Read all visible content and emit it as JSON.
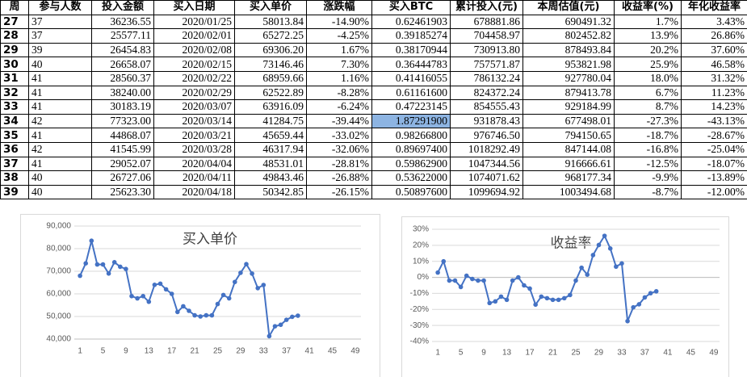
{
  "table": {
    "header": [
      "周",
      "参与人数",
      "投入金额",
      "买入日期",
      "买入单价",
      "涨跌幅",
      "买入BTC",
      "累计投入(元)",
      "本周估值(元)",
      "收益率(%)",
      "年化收益率"
    ],
    "rows": [
      [
        "27",
        "37",
        "36236.55",
        "2020/01/25",
        "58013.84",
        "-14.90%",
        "0.62461903",
        "678881.86",
        "690491.32",
        "1.7%",
        "3.43%"
      ],
      [
        "28",
        "37",
        "25577.11",
        "2020/02/01",
        "65272.25",
        "-4.25%",
        "0.39185274",
        "704458.97",
        "802452.82",
        "13.9%",
        "26.86%"
      ],
      [
        "29",
        "39",
        "26454.83",
        "2020/02/08",
        "69306.20",
        "1.67%",
        "0.38170944",
        "730913.80",
        "878493.84",
        "20.2%",
        "37.60%"
      ],
      [
        "30",
        "40",
        "26658.07",
        "2020/02/15",
        "73146.46",
        "7.30%",
        "0.36444783",
        "757571.87",
        "953821.98",
        "25.9%",
        "46.58%"
      ],
      [
        "31",
        "41",
        "28560.37",
        "2020/02/22",
        "68959.66",
        "1.16%",
        "0.41416055",
        "786132.24",
        "927780.04",
        "18.0%",
        "31.32%"
      ],
      [
        "32",
        "41",
        "38240.00",
        "2020/02/29",
        "62522.89",
        "-8.28%",
        "0.61161600",
        "824372.24",
        "879413.78",
        "6.7%",
        "11.23%"
      ],
      [
        "33",
        "41",
        "30183.19",
        "2020/03/07",
        "63916.09",
        "-6.24%",
        "0.47223145",
        "854555.43",
        "929184.99",
        "8.7%",
        "14.23%"
      ],
      [
        "34",
        "42",
        "77323.00",
        "2020/03/14",
        "41284.75",
        "-39.44%",
        "1.87291900",
        "931878.43",
        "677498.01",
        "-27.3%",
        "-43.13%"
      ],
      [
        "35",
        "41",
        "44868.07",
        "2020/03/21",
        "45659.44",
        "-33.02%",
        "0.98266800",
        "976746.50",
        "794150.65",
        "-18.7%",
        "-28.67%"
      ],
      [
        "36",
        "42",
        "41545.99",
        "2020/03/28",
        "46317.94",
        "-32.06%",
        "0.89697400",
        "1018292.49",
        "847144.08",
        "-16.8%",
        "-25.04%"
      ],
      [
        "37",
        "41",
        "29052.07",
        "2020/04/04",
        "48531.01",
        "-28.81%",
        "0.59862900",
        "1047344.56",
        "916666.61",
        "-12.5%",
        "-18.07%"
      ],
      [
        "38",
        "40",
        "26727.06",
        "2020/04/11",
        "49843.46",
        "-26.88%",
        "0.53622000",
        "1074071.62",
        "968177.34",
        "-9.9%",
        "-13.89%"
      ],
      [
        "39",
        "40",
        "25623.30",
        "2020/04/18",
        "50342.85",
        "-26.15%",
        "0.50897600",
        "1099694.92",
        "1003494.68",
        "-8.7%",
        "-12.00%"
      ]
    ]
  },
  "chart_data": [
    {
      "type": "line",
      "title": "买入单价",
      "x": [
        1,
        2,
        3,
        4,
        5,
        6,
        7,
        8,
        9,
        10,
        11,
        12,
        13,
        14,
        15,
        16,
        17,
        18,
        19,
        20,
        21,
        22,
        23,
        24,
        25,
        26,
        27,
        28,
        29,
        30,
        31,
        32,
        33,
        34,
        35,
        36,
        37,
        38,
        39
      ],
      "values": [
        68000,
        73500,
        83500,
        73000,
        73000,
        69000,
        74000,
        72000,
        71000,
        59000,
        58000,
        59000,
        56500,
        64000,
        64500,
        62000,
        60000,
        52000,
        54500,
        52500,
        50500,
        50000,
        50500,
        50500,
        55500,
        59500,
        58013.84,
        65272.25,
        69306.2,
        73146.46,
        68959.66,
        62522.89,
        63916.09,
        41284.75,
        45659.44,
        46317.94,
        48531.01,
        49843.46,
        50342.85
      ],
      "color": "#4472c4",
      "xlim": [
        0,
        50
      ],
      "xticks": [
        1,
        5,
        9,
        13,
        17,
        21,
        25,
        29,
        33,
        37,
        41,
        45,
        49
      ],
      "ylim": [
        40000,
        90000
      ],
      "yticks": [
        {
          "value": 40000,
          "label": "40,000"
        },
        {
          "value": 50000,
          "label": "50,000"
        },
        {
          "value": 60000,
          "label": "60,000"
        },
        {
          "value": 70000,
          "label": "70,000"
        },
        {
          "value": 80000,
          "label": "80,000"
        },
        {
          "value": 90000,
          "label": "90,000"
        }
      ],
      "grid": true
    },
    {
      "type": "line",
      "title": "收益率",
      "x": [
        1,
        2,
        3,
        4,
        5,
        6,
        7,
        8,
        9,
        10,
        11,
        12,
        13,
        14,
        15,
        16,
        17,
        18,
        19,
        20,
        21,
        22,
        23,
        24,
        25,
        26,
        27,
        28,
        29,
        30,
        31,
        32,
        33,
        34,
        35,
        36,
        37,
        38,
        39
      ],
      "values": [
        3,
        10,
        -2,
        -2,
        -6,
        1,
        -1,
        -2,
        -2,
        -16,
        -15,
        -12,
        -14,
        -2,
        0,
        -5,
        -7,
        -17,
        -12,
        -13,
        -14,
        -14,
        -13,
        -11,
        -2,
        6,
        1.7,
        13.9,
        20.2,
        25.9,
        18.0,
        6.7,
        8.7,
        -27.3,
        -18.7,
        -16.8,
        -12.5,
        -9.9,
        -8.7
      ],
      "color": "#4472c4",
      "xlim": [
        0,
        50
      ],
      "xticks": [
        1,
        5,
        9,
        13,
        17,
        21,
        25,
        29,
        33,
        37,
        41,
        45,
        49
      ],
      "ylim": [
        -40,
        30
      ],
      "yticks": [
        {
          "value": -40,
          "label": "-40%"
        },
        {
          "value": -30,
          "label": "-30%"
        },
        {
          "value": -20,
          "label": "-20%"
        },
        {
          "value": -10,
          "label": "-10%"
        },
        {
          "value": 0,
          "label": "0%"
        },
        {
          "value": 10,
          "label": "10%"
        },
        {
          "value": 20,
          "label": "20%"
        },
        {
          "value": 30,
          "label": "30%"
        }
      ],
      "grid": true
    }
  ]
}
